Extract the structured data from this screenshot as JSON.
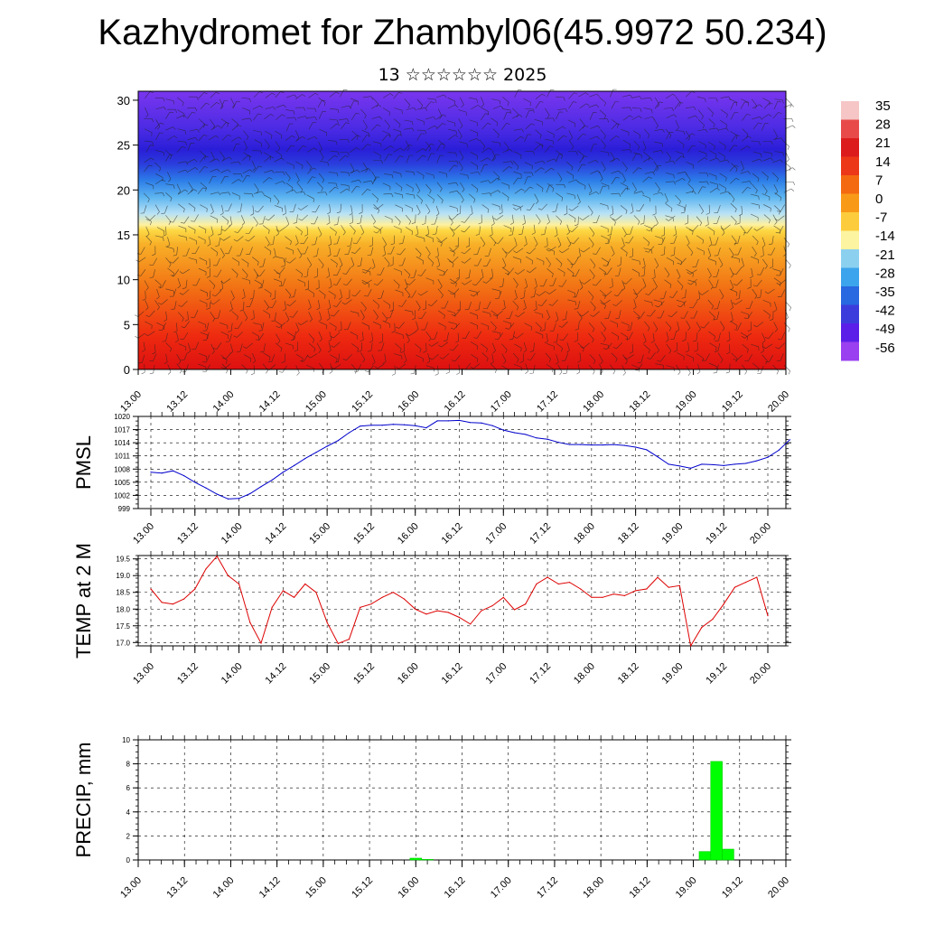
{
  "title": "Kazhydromet for Zhambyl06(45.9972 50.234)",
  "subtitle": "13 ☆☆☆☆☆☆ 2025",
  "time_ticks": [
    "13.00",
    "13.12",
    "14.00",
    "14.12",
    "15.00",
    "15.12",
    "16.00",
    "16.12",
    "17.00",
    "17.12",
    "18.00",
    "18.12",
    "19.00",
    "19.12",
    "20.00"
  ],
  "chart_data": [
    {
      "type": "heatmap",
      "name": "cross-section",
      "x": [
        "13.00",
        "13.12",
        "14.00",
        "14.12",
        "15.00",
        "15.12",
        "16.00",
        "16.12",
        "17.00",
        "17.12",
        "18.00",
        "18.12",
        "19.00",
        "19.12",
        "20.00"
      ],
      "yticks": [
        0,
        5,
        10,
        15,
        20,
        25,
        30
      ],
      "ylim": [
        0,
        31
      ],
      "colorbar": {
        "labels": [
          "35",
          "28",
          "21",
          "14",
          "7",
          "0",
          "-7",
          "-14",
          "-21",
          "-28",
          "-35",
          "-42",
          "-49",
          "-56"
        ],
        "colors": [
          "#f6c6c6",
          "#e84a4a",
          "#dc1c1c",
          "#ec3818",
          "#f46a10",
          "#f89a18",
          "#fccc3c",
          "#fcf4a0",
          "#8cd0f0",
          "#3ca4ec",
          "#2868e0",
          "#3c3cdc",
          "#5a1ee8",
          "#9a40f0"
        ]
      },
      "wind_barbs": true
    },
    {
      "type": "line",
      "ylabel": "PMSL",
      "yticks": [
        "1020",
        "1017",
        "1014",
        "1011",
        "1008",
        "1005",
        "1002",
        "999"
      ],
      "ylim": [
        999,
        1020
      ],
      "color": "#0000cc",
      "series": [
        {
          "values": [
            1007.3,
            1007.1,
            1007.6,
            1006.5,
            1005.0,
            1003.7,
            1002.3,
            1001.2,
            1001.3,
            1002.4,
            1004.0,
            1005.5,
            1007.3,
            1008.8,
            1010.4,
            1011.8,
            1013.2,
            1014.5,
            1016.3,
            1017.8,
            1018.0,
            1018.0,
            1018.2,
            1018.1,
            1017.9,
            1017.4,
            1019.0,
            1019.0,
            1019.1,
            1018.6,
            1018.5,
            1017.9,
            1016.9,
            1016.3,
            1015.9,
            1015.1,
            1014.8,
            1014.1,
            1013.6,
            1013.6,
            1013.5,
            1013.5,
            1013.6,
            1013.4,
            1013.0,
            1012.4,
            1010.8,
            1009.1,
            1008.7,
            1008.2,
            1009.1,
            1009.0,
            1008.8,
            1009.1,
            1009.3,
            1009.9,
            1010.7,
            1012.3,
            1014.7
          ]
        }
      ],
      "x_start": 0,
      "x_step": 3
    },
    {
      "type": "line",
      "ylabel": "TEMP at 2 M",
      "yticks": [
        "19.5",
        "19.0",
        "18.5",
        "18.0",
        "17.5",
        "17.0"
      ],
      "ylim": [
        16.9,
        19.6
      ],
      "color": "#dd0000",
      "series": [
        {
          "values": [
            18.6,
            18.2,
            18.15,
            18.3,
            18.6,
            19.2,
            19.58,
            19.0,
            18.75,
            17.6,
            16.98,
            18.05,
            18.55,
            18.35,
            18.75,
            18.5,
            17.6,
            16.97,
            17.1,
            18.05,
            18.15,
            18.35,
            18.5,
            18.3,
            18.0,
            17.85,
            17.95,
            17.9,
            17.75,
            17.55,
            17.95,
            18.1,
            18.35,
            17.98,
            18.15,
            18.75,
            18.95,
            18.75,
            18.8,
            18.6,
            18.35,
            18.35,
            18.45,
            18.4,
            18.55,
            18.6,
            18.95,
            18.65,
            18.7,
            16.9,
            17.45,
            17.7,
            18.15,
            18.65,
            18.8,
            18.95,
            17.8
          ]
        }
      ],
      "x_start": 0,
      "x_step": 3
    },
    {
      "type": "bar",
      "ylabel": "PRECIP, mm",
      "yticks": [
        "10",
        "8",
        "6",
        "4",
        "2",
        "0"
      ],
      "ylim": [
        0,
        10
      ],
      "color": "#00ff00",
      "bars": [
        {
          "x": 72,
          "value": 0.15
        },
        {
          "x": 75,
          "value": 0.05
        },
        {
          "x": 147,
          "value": 0.7
        },
        {
          "x": 150,
          "value": 8.2
        },
        {
          "x": 153,
          "value": 0.9
        }
      ]
    }
  ]
}
